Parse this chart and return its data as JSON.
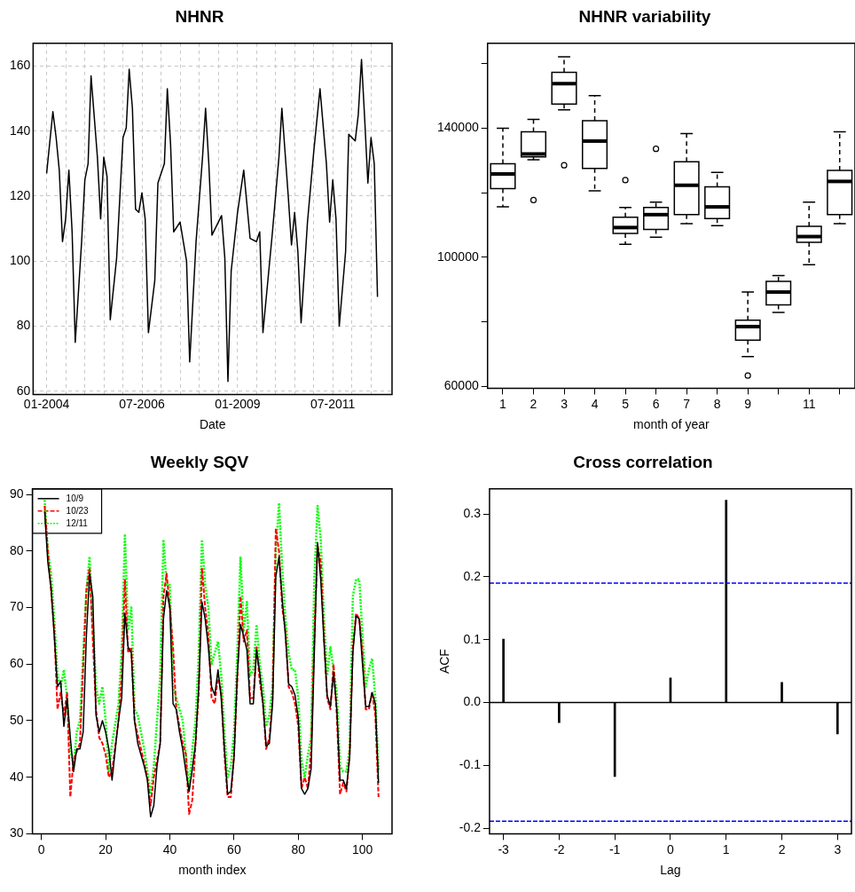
{
  "chart_data": [
    {
      "type": "line",
      "title": "NHNR",
      "xlabel": "Date",
      "grid": true,
      "x": [
        "2004-01",
        "2004-03",
        "2004-04",
        "2004-05",
        "2004-06",
        "2004-07",
        "2004-08",
        "2004-09",
        "2004-10",
        "2004-12",
        "2005-01",
        "2005-02",
        "2005-03",
        "2005-05",
        "2005-06",
        "2005-07",
        "2005-08",
        "2005-09",
        "2005-11",
        "2006-01",
        "2006-02",
        "2006-03",
        "2006-04",
        "2006-05",
        "2006-06",
        "2006-07",
        "2006-08",
        "2006-09",
        "2006-11",
        "2006-12",
        "2007-02",
        "2007-03",
        "2007-04",
        "2007-05",
        "2007-07",
        "2007-09",
        "2007-10",
        "2007-12",
        "2008-02",
        "2008-03",
        "2008-04",
        "2008-05",
        "2008-08",
        "2008-09",
        "2008-10",
        "2008-11",
        "2009-01",
        "2009-03",
        "2009-05",
        "2009-07",
        "2009-08",
        "2009-09",
        "2009-12",
        "2010-02",
        "2010-03",
        "2010-05",
        "2010-06",
        "2010-07",
        "2010-08",
        "2010-09",
        "2010-11",
        "2011-01",
        "2011-03",
        "2011-05",
        "2011-06",
        "2011-07",
        "2011-08",
        "2011-09",
        "2011-11",
        "2011-12",
        "2012-02",
        "2012-03",
        "2012-04",
        "2012-05",
        "2012-06",
        "2012-07",
        "2012-08",
        "2012-09"
      ],
      "series": [
        {
          "color": "#000000",
          "values": [
            127,
            146,
            138,
            128,
            106,
            113,
            128,
            109,
            75,
            106,
            125,
            130,
            157,
            132,
            113,
            132,
            126,
            82,
            101,
            138,
            141,
            159,
            147,
            116,
            115,
            121,
            113,
            78,
            94,
            124,
            130,
            153,
            136,
            109,
            112,
            100,
            69,
            106,
            132,
            147,
            130,
            108,
            114,
            101,
            63,
            97,
            115,
            128,
            107,
            106,
            109,
            78,
            109,
            132,
            147,
            120,
            105,
            115,
            103,
            81,
            112,
            134,
            153,
            130,
            112,
            125,
            113,
            80,
            103,
            139,
            137,
            145,
            162,
            144,
            124,
            138,
            130,
            89
          ]
        }
      ],
      "xlim": [
        "2003-08-25",
        "2013-01-18"
      ],
      "xticks": [
        {
          "value": "2004-01",
          "label": "01-2004"
        },
        {
          "value": "2004-07",
          "label": null
        },
        {
          "value": "2005-01",
          "label": null
        },
        {
          "value": "2005-07",
          "label": null
        },
        {
          "value": "2006-01",
          "label": null
        },
        {
          "value": "2006-07",
          "label": "07-2006"
        },
        {
          "value": "2007-01",
          "label": null
        },
        {
          "value": "2007-07",
          "label": null
        },
        {
          "value": "2008-01",
          "label": null
        },
        {
          "value": "2008-07",
          "label": null
        },
        {
          "value": "2009-01",
          "label": "01-2009"
        },
        {
          "value": "2009-07",
          "label": null
        },
        {
          "value": "2010-01",
          "label": null
        },
        {
          "value": "2010-07",
          "label": null
        },
        {
          "value": "2011-01",
          "label": null
        },
        {
          "value": "2011-07",
          "label": "07-2011"
        },
        {
          "value": "2012-01",
          "label": null
        },
        {
          "value": "2012-07",
          "label": null
        }
      ],
      "ylim": [
        59,
        167
      ],
      "yticks": [
        60,
        80,
        100,
        120,
        140,
        160
      ]
    },
    {
      "type": "box",
      "title": "NHNR variability",
      "xlabel": "month of year",
      "categories": [
        "1",
        "2",
        "3",
        "4",
        "5",
        "6",
        "7",
        "8",
        "9",
        null,
        "11",
        null
      ],
      "series": [
        {
          "color": "#000000",
          "boxes": [
            {
              "low": 115600,
              "q1": 121300,
              "median": 125800,
              "q3": 129000,
              "high": 140000
            },
            {
              "low": 130200,
              "q1": 131100,
              "median": 132000,
              "q3": 138900,
              "high": 142700,
              "outliers": [
                117700
              ]
            },
            {
              "low": 145700,
              "q1": 147500,
              "median": 153800,
              "q3": 157300,
              "high": 162100,
              "outliers": [
                128500
              ]
            },
            {
              "low": 120600,
              "q1": 127500,
              "median": 136000,
              "q3": 142300,
              "high": 150100
            },
            {
              "low": 104000,
              "q1": 107400,
              "median": 109200,
              "q3": 112400,
              "high": 115400,
              "outliers": [
                123900
              ]
            },
            {
              "low": 106200,
              "q1": 108600,
              "median": 113200,
              "q3": 115400,
              "high": 117100,
              "outliers": [
                133600
              ]
            },
            {
              "low": 110400,
              "q1": 113200,
              "median": 122300,
              "q3": 129600,
              "high": 138300
            },
            {
              "low": 109800,
              "q1": 112000,
              "median": 115600,
              "q3": 121800,
              "high": 126300
            },
            {
              "low": 69200,
              "q1": 74300,
              "median": 78500,
              "q3": 80500,
              "high": 89200,
              "outliers": [
                63300
              ]
            },
            {
              "low": 82900,
              "q1": 85200,
              "median": 89200,
              "q3": 92500,
              "high": 94300
            },
            {
              "low": 97700,
              "q1": 104600,
              "median": 106400,
              "q3": 109600,
              "high": 117100
            },
            {
              "low": 110400,
              "q1": 113200,
              "median": 123500,
              "q3": 126900,
              "high": 138900
            }
          ]
        }
      ],
      "ylim": [
        59400,
        166300
      ],
      "yticks": [
        60000,
        {
          "value": 80000,
          "label": null
        },
        100000,
        {
          "value": 120000,
          "label": null
        },
        140000,
        {
          "value": 160000,
          "label": null
        }
      ]
    },
    {
      "type": "line",
      "title": "Weekly SQV",
      "xlabel": "month index",
      "legend": "top left",
      "series": [
        {
          "name": "10/9",
          "color": "#000000",
          "line_style": "solid",
          "x": [
            1,
            2,
            3,
            4,
            5,
            6,
            7,
            8,
            9,
            10,
            11,
            12,
            13,
            14,
            15,
            16,
            17,
            18,
            19,
            20,
            21,
            22,
            23,
            24,
            25,
            26,
            27,
            28,
            29,
            30,
            31,
            32,
            33,
            34,
            35,
            36,
            37,
            38,
            39,
            40,
            41,
            42,
            43,
            44,
            45,
            46,
            47,
            48,
            49,
            50,
            51,
            52,
            53,
            54,
            55,
            56,
            57,
            58,
            59,
            60,
            61,
            62,
            63,
            64,
            65,
            66,
            67,
            68,
            69,
            70,
            71,
            72,
            73,
            74,
            75,
            76,
            77,
            78,
            79,
            80,
            81,
            82,
            83,
            84,
            85,
            86,
            87,
            88,
            89,
            90,
            91,
            92,
            93,
            94,
            95,
            96,
            97,
            98,
            99,
            100,
            101,
            102,
            103,
            104,
            105
          ],
          "values": [
            87,
            78,
            73.5,
            65,
            56,
            57,
            49,
            54,
            47,
            41,
            45,
            45,
            48,
            65,
            76,
            72,
            51,
            48,
            50,
            48,
            45,
            39.5,
            45,
            50,
            54,
            69,
            63,
            62,
            50,
            46,
            44,
            42,
            39.5,
            33,
            35,
            42,
            46,
            68,
            73,
            70,
            53,
            52,
            48,
            45,
            41,
            37.5,
            41.5,
            46,
            56,
            71,
            68,
            63,
            56,
            54.5,
            59,
            54,
            45,
            37,
            37.5,
            43.5,
            58,
            67,
            65,
            62.5,
            53,
            53,
            62.5,
            58.5,
            53,
            45.5,
            46,
            53,
            75.5,
            79,
            71.5,
            65,
            56.5,
            56,
            54.5,
            50.5,
            38,
            37,
            38,
            41.5,
            62,
            81.5,
            75,
            64,
            54.5,
            52.5,
            58.5,
            52,
            39.5,
            39.5,
            38,
            43.5,
            62,
            68.5,
            68,
            60,
            52.5,
            52.5,
            55,
            53,
            39
          ]
        },
        {
          "name": "10/23",
          "color": "#ff0000",
          "line_style": "dashed",
          "x": [
            1,
            2,
            4,
            5,
            6,
            7,
            8,
            9,
            10,
            12,
            14,
            15,
            17,
            18,
            19,
            20,
            21,
            22,
            24,
            25,
            26,
            27,
            28,
            29,
            31,
            33,
            34,
            35,
            37,
            38,
            39,
            40,
            41,
            42,
            44,
            45,
            46,
            47,
            48,
            49,
            50,
            51,
            52,
            53,
            54,
            55,
            56,
            57,
            58,
            59,
            60,
            61,
            62,
            63,
            64,
            65,
            66,
            67,
            68,
            69,
            70,
            71,
            72,
            73,
            74,
            75,
            76,
            77,
            78,
            79,
            80,
            81,
            82,
            83,
            84,
            85,
            86,
            87,
            88,
            89,
            90,
            91,
            92,
            93,
            94,
            95,
            96,
            97,
            98,
            99,
            100,
            101,
            102,
            103,
            104,
            105
          ],
          "values": [
            88,
            80,
            66,
            52,
            55,
            51,
            55,
            36.5,
            43,
            46,
            73,
            77,
            52,
            47,
            46,
            44,
            40,
            41,
            50,
            58,
            75,
            62,
            63,
            50,
            45,
            40,
            35,
            40,
            46,
            72,
            76,
            70,
            63,
            52,
            46,
            44,
            33.5,
            36,
            46,
            55,
            77,
            70,
            65,
            54,
            53,
            58,
            55,
            44,
            36.5,
            36.5,
            44,
            57,
            72,
            64,
            66,
            54,
            54,
            63,
            57,
            53,
            45,
            47,
            54,
            84,
            80,
            70,
            66,
            56,
            55,
            53,
            49,
            38,
            40,
            38,
            45,
            65,
            81,
            78,
            65,
            54,
            52,
            60,
            51,
            37,
            39,
            37.5,
            44,
            63,
            69,
            68,
            62,
            52,
            52,
            55,
            51,
            36.5
          ]
        },
        {
          "name": "12/11",
          "color": "#00ff00",
          "line_style": "dotted",
          "x": [
            1,
            2,
            3,
            4,
            5,
            6,
            7,
            8,
            9,
            10,
            11,
            12,
            14,
            15,
            17,
            18,
            19,
            20,
            21,
            22,
            24,
            25,
            26,
            27,
            28,
            29,
            30,
            32,
            34,
            35,
            37,
            38,
            39,
            40,
            41,
            42,
            44,
            46,
            47,
            48,
            49,
            50,
            51,
            52,
            53,
            54,
            55,
            56,
            57,
            58,
            59,
            60,
            61,
            62,
            63,
            64,
            65,
            66,
            67,
            68,
            69,
            70,
            71,
            72,
            73,
            74,
            75,
            76,
            77,
            78,
            79,
            80,
            81,
            82,
            83,
            84,
            85,
            86,
            87,
            88,
            89,
            90,
            91,
            92,
            93,
            94,
            95,
            96,
            97,
            98,
            99,
            100,
            101,
            102,
            103,
            104,
            105
          ],
          "values": [
            89,
            80,
            76,
            68,
            58,
            56,
            59,
            54,
            45,
            42,
            48,
            50,
            73,
            79,
            56,
            53,
            56,
            50,
            41,
            46,
            53,
            62,
            83,
            66,
            70,
            52,
            51,
            45,
            37,
            42,
            58,
            82,
            74,
            74,
            56,
            54,
            50,
            38,
            45,
            50,
            62,
            82,
            74,
            70,
            60,
            62,
            64,
            58,
            48,
            40,
            42,
            48,
            62,
            79,
            66,
            71,
            58,
            59,
            67,
            60,
            56,
            49,
            51,
            56,
            80,
            88.5,
            77,
            68,
            62,
            59,
            59,
            54,
            43,
            40,
            44,
            47,
            75,
            88,
            82,
            68,
            58,
            63,
            59,
            55,
            42,
            41,
            41,
            45,
            72,
            75,
            75,
            65,
            56,
            59,
            61,
            54,
            41
          ]
        }
      ],
      "xlim": [
        -2.8,
        109.2
      ],
      "xticks": [
        0,
        20,
        40,
        60,
        80,
        100
      ],
      "ylim": [
        30,
        91
      ],
      "yticks": [
        30,
        40,
        50,
        60,
        70,
        80,
        90
      ]
    },
    {
      "type": "bar",
      "title": "Cross correlation",
      "xlabel": "Lag",
      "ylabel": "ACF",
      "x": [
        -3,
        -2,
        -1,
        0,
        1,
        2,
        3
      ],
      "values": [
        0.101,
        -0.032,
        -0.118,
        0.039,
        0.322,
        0.032,
        -0.05
      ],
      "color": "#000000",
      "ref_lines": [
        {
          "axis": "y",
          "value": 0,
          "color": "#000000",
          "line_style": "solid"
        },
        {
          "axis": "y",
          "value": 0.19,
          "color": "#0000ff",
          "line_style": "dashed"
        },
        {
          "axis": "y",
          "value": -0.189,
          "color": "#0000ff",
          "line_style": "dashed"
        }
      ],
      "xlim": [
        -3.25,
        3.25
      ],
      "xticks": [
        -3,
        -2,
        -1,
        0,
        1,
        2,
        3
      ],
      "ylim": [
        -0.209,
        0.34
      ],
      "yticks": [
        -0.2,
        -0.1,
        {
          "value": 0,
          "label": "0.0"
        },
        0.1,
        0.2,
        0.3
      ]
    }
  ]
}
